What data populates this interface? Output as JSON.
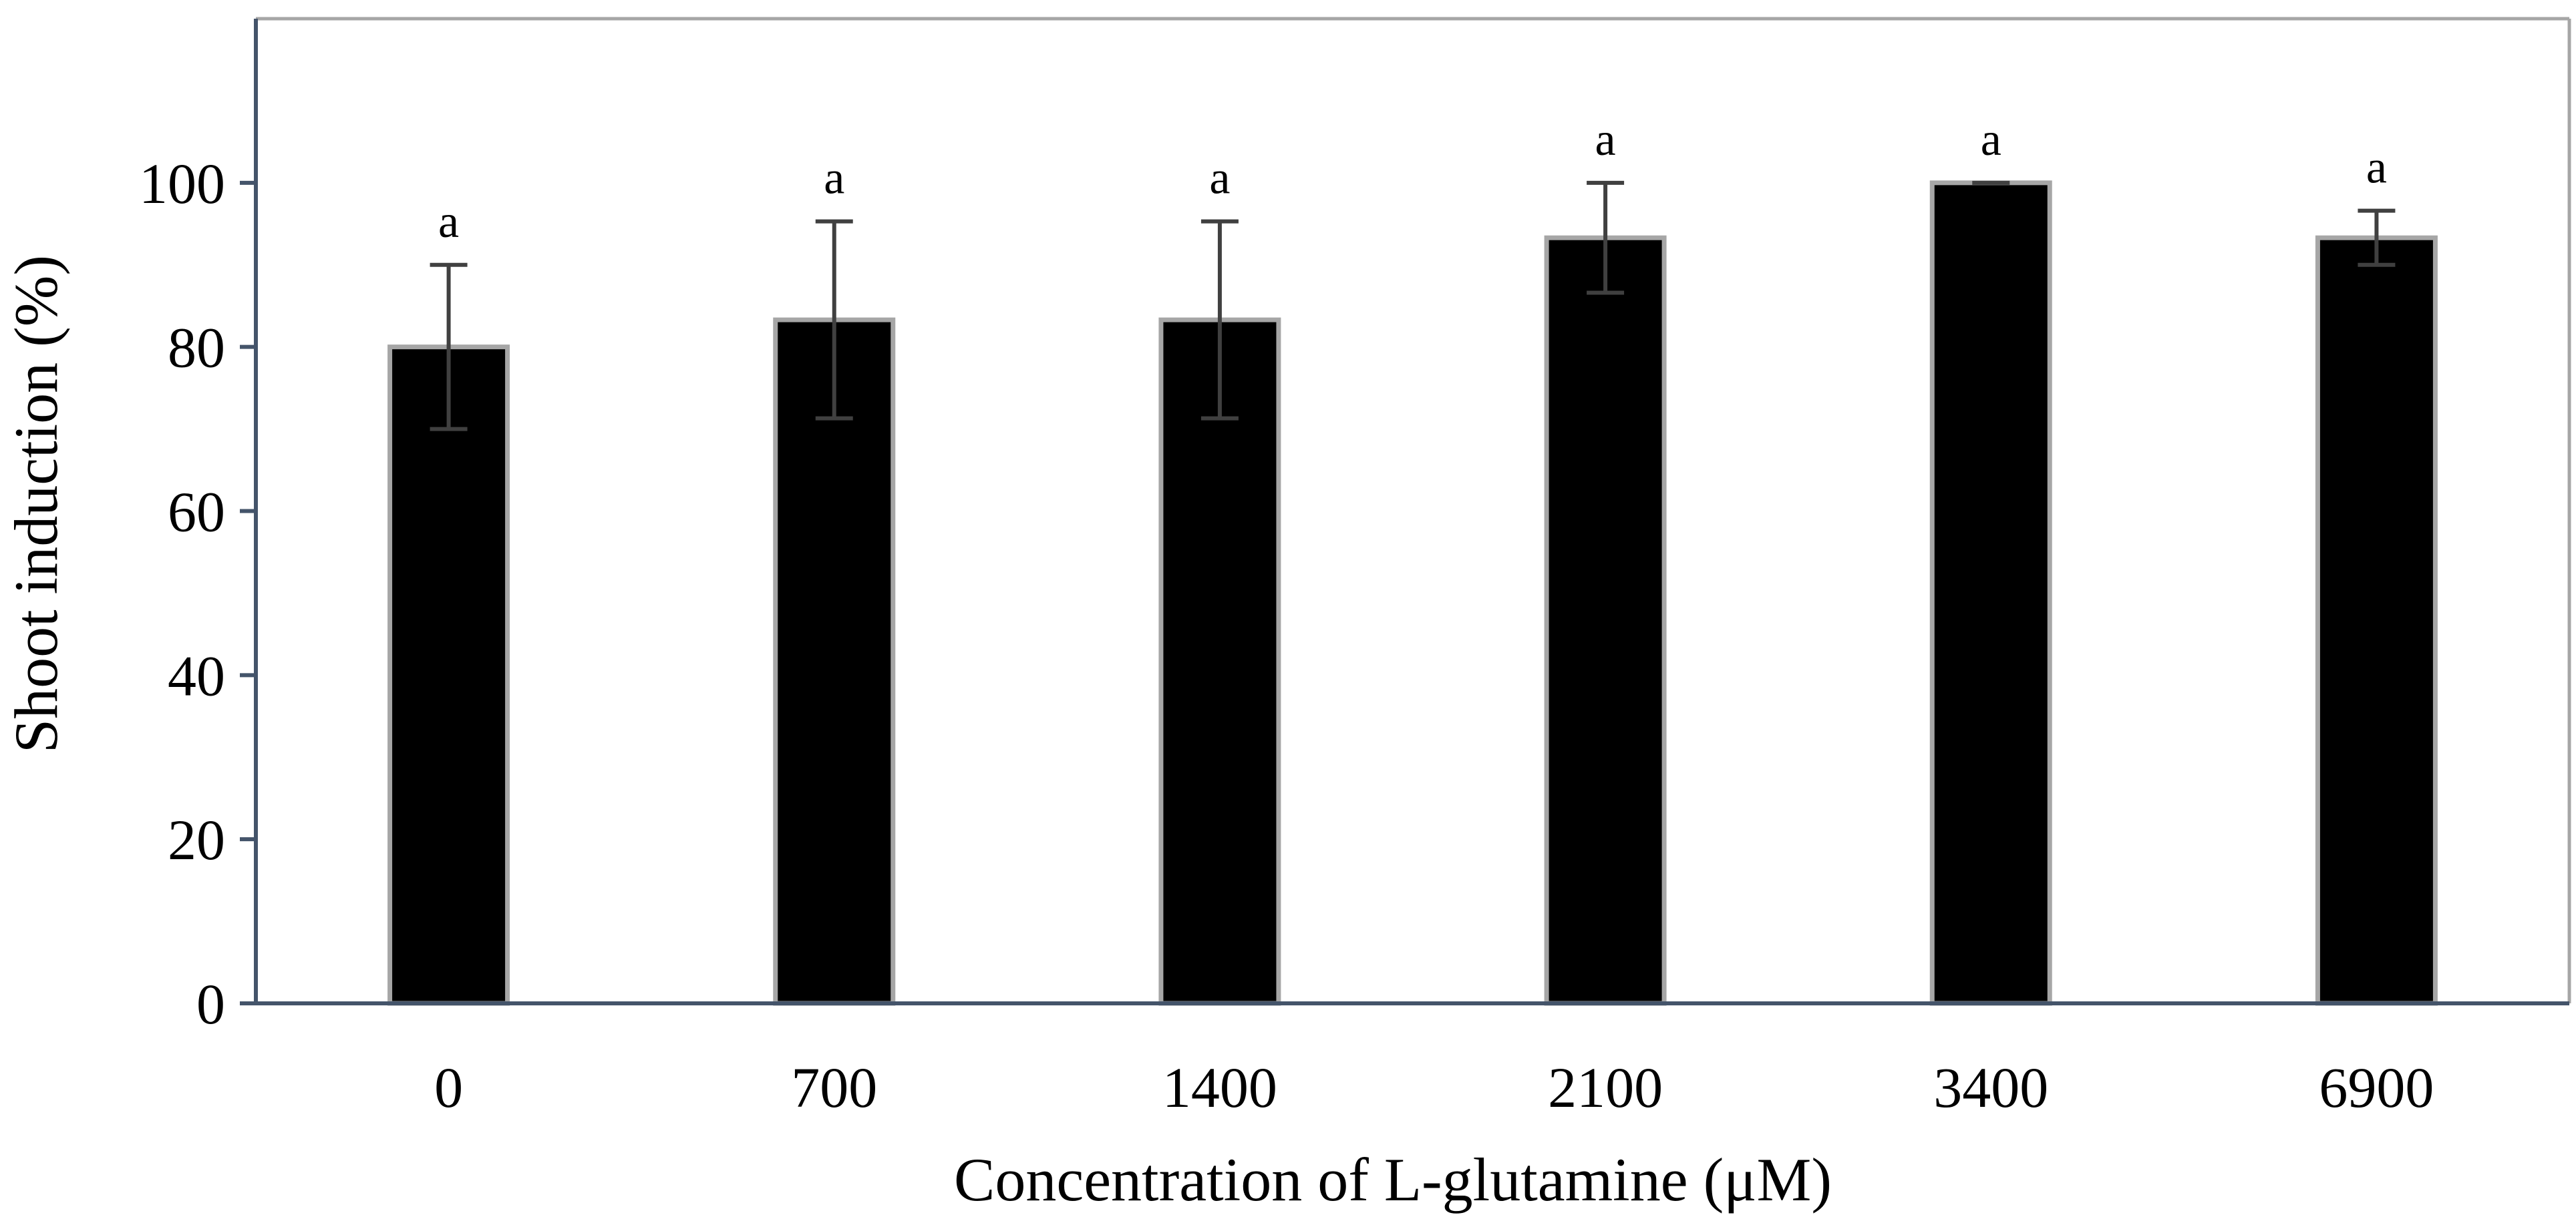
{
  "chart_data": {
    "type": "bar",
    "title": "",
    "xlabel": "Concentration of L-glutamine (μM)",
    "ylabel": "Shoot induction (%)",
    "categories": [
      "0",
      "700",
      "1400",
      "2100",
      "3400",
      "6900"
    ],
    "values": [
      80,
      83.3,
      83.3,
      93.3,
      100,
      93.3
    ],
    "error": [
      10,
      12,
      12,
      6.7,
      0,
      3.3
    ],
    "significance": [
      "a",
      "a",
      "a",
      "a",
      "a",
      "a"
    ],
    "ylim": [
      0,
      120
    ],
    "yticks": [
      "0",
      "20",
      "40",
      "60",
      "80",
      "100"
    ],
    "grid": false,
    "legend": "none",
    "colors": {
      "bar_fill": "#000000",
      "bar_edge": "#a6a6a6",
      "axis": "#44546a",
      "frame": "#a6a6a6",
      "error_bar": "#404040"
    }
  }
}
